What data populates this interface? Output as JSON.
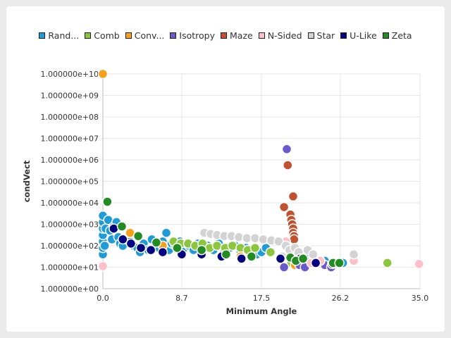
{
  "chart_data": {
    "type": "scatter",
    "xlabel": "Minimum Angle",
    "ylabel": "condVect",
    "xlim": [
      0,
      35
    ],
    "ylim": [
      0,
      10
    ],
    "y_scale": "log10 (axis value = exponent)",
    "x_ticks": [
      {
        "value": 0,
        "label": "0.0"
      },
      {
        "value": 8.7,
        "label": "8.7"
      },
      {
        "value": 17.5,
        "label": "17.5"
      },
      {
        "value": 26.2,
        "label": "26.2"
      },
      {
        "value": 35.0,
        "label": "35.0"
      }
    ],
    "y_ticks": [
      {
        "value": 0,
        "label": "1.000000e+00"
      },
      {
        "value": 1,
        "label": "1.000000e+01"
      },
      {
        "value": 2,
        "label": "1.000000e+02"
      },
      {
        "value": 3,
        "label": "1.000000e+03"
      },
      {
        "value": 4,
        "label": "1.000000e+04"
      },
      {
        "value": 5,
        "label": "1.000000e+05"
      },
      {
        "value": 6,
        "label": "1.000000e+06"
      },
      {
        "value": 7,
        "label": "1.000000e+07"
      },
      {
        "value": 8,
        "label": "1.000000e+08"
      },
      {
        "value": 9,
        "label": "1.000000e+09"
      },
      {
        "value": 10,
        "label": "1.000000e+10"
      }
    ],
    "series": [
      {
        "name": "Random",
        "legend_label": "Rand...",
        "color": "#1f9bd7",
        "points": [
          [
            0,
            1.6
          ],
          [
            0,
            1.9
          ],
          [
            0,
            2.2
          ],
          [
            0,
            2.5
          ],
          [
            0,
            2.8
          ],
          [
            0,
            3.1
          ],
          [
            0,
            3.4
          ],
          [
            0.2,
            2.0
          ],
          [
            0.3,
            2.8
          ],
          [
            0.6,
            3.2
          ],
          [
            0.8,
            2.7
          ],
          [
            1.0,
            2.3
          ],
          [
            1.2,
            2.9
          ],
          [
            1.5,
            3.1
          ],
          [
            1.7,
            2.4
          ],
          [
            1.9,
            2.1
          ],
          [
            2.2,
            2.0
          ],
          [
            2.6,
            2.3
          ],
          [
            3.0,
            2.2
          ],
          [
            3.4,
            2.0
          ],
          [
            3.8,
            1.9
          ],
          [
            4.1,
            1.7
          ],
          [
            4.5,
            2.1
          ],
          [
            5.0,
            1.8
          ],
          [
            5.4,
            2.3
          ],
          [
            5.8,
            2.0
          ],
          [
            6.2,
            1.9
          ],
          [
            6.6,
            2.2
          ],
          [
            7.0,
            2.6
          ],
          [
            7.3,
            1.8
          ],
          [
            7.6,
            2.1
          ],
          [
            8.0,
            2.0
          ],
          [
            8.5,
            2.2
          ],
          [
            9.0,
            1.9
          ],
          [
            9.5,
            2.0
          ],
          [
            10.0,
            1.8
          ],
          [
            10.5,
            2.1
          ],
          [
            11.0,
            1.9
          ],
          [
            11.6,
            2.0
          ],
          [
            12.2,
            1.8
          ],
          [
            12.8,
            2.1
          ],
          [
            13.4,
            1.7
          ],
          [
            14.0,
            1.9
          ],
          [
            14.6,
            2.0
          ],
          [
            15.2,
            1.7
          ],
          [
            15.8,
            1.9
          ],
          [
            16.4,
            1.8
          ],
          [
            17.0,
            1.6
          ],
          [
            17.5,
            1.7
          ],
          [
            18.0,
            1.9
          ],
          [
            20.5,
            1.5
          ],
          [
            21.0,
            1.4
          ],
          [
            21.5,
            1.6
          ],
          [
            22.5,
            1.4
          ],
          [
            23.5,
            1.3
          ],
          [
            24.5,
            1.3
          ],
          [
            26.5,
            1.2
          ]
        ]
      },
      {
        "name": "Comb",
        "legend_label": "Comb",
        "color": "#8cc63f",
        "points": [
          [
            7.8,
            2.2
          ],
          [
            8.6,
            2.1
          ],
          [
            9.4,
            2.1
          ],
          [
            10.2,
            2.0
          ],
          [
            11.0,
            2.1
          ],
          [
            11.8,
            1.9
          ],
          [
            12.6,
            2.0
          ],
          [
            13.5,
            1.9
          ],
          [
            14.3,
            2.0
          ],
          [
            15.2,
            1.9
          ],
          [
            16.0,
            1.8
          ],
          [
            16.8,
            1.9
          ],
          [
            18.5,
            1.7
          ],
          [
            20.8,
            1.2
          ],
          [
            21.6,
            1.4
          ],
          [
            22.4,
            1.3
          ],
          [
            31.4,
            1.2
          ]
        ]
      },
      {
        "name": "Convex",
        "legend_label": "Conv...",
        "color": "#f7a01c",
        "points": [
          [
            0,
            10.0
          ],
          [
            3.0,
            2.6
          ],
          [
            6.6,
            2.0
          ],
          [
            15.2,
            1.5
          ],
          [
            21.2,
            1.1
          ]
        ]
      },
      {
        "name": "Isotropy",
        "legend_label": "Isotropy",
        "color": "#6a5acd",
        "points": [
          [
            20.3,
            6.5
          ],
          [
            20.0,
            1.0
          ],
          [
            21.7,
            1.1
          ],
          [
            22.3,
            1.0
          ],
          [
            24.5,
            1.1
          ],
          [
            25.2,
            1.0
          ]
        ]
      },
      {
        "name": "Maze",
        "legend_label": "Maze",
        "color": "#c0522f",
        "points": [
          [
            20.4,
            5.75
          ],
          [
            21.0,
            4.3
          ],
          [
            20.0,
            3.8
          ],
          [
            20.7,
            3.45
          ],
          [
            20.8,
            3.2
          ],
          [
            20.9,
            3.0
          ],
          [
            21.0,
            2.8
          ],
          [
            21.0,
            2.6
          ],
          [
            21.1,
            2.45
          ],
          [
            21.1,
            2.3
          ]
        ]
      },
      {
        "name": "N-Sided",
        "legend_label": "N-Sided",
        "color": "#ffc0cb",
        "points": [
          [
            0,
            1.05
          ],
          [
            20.2,
            2.2
          ],
          [
            22.0,
            1.5
          ],
          [
            23.0,
            1.2
          ],
          [
            24.0,
            1.3
          ],
          [
            27.7,
            1.3
          ],
          [
            34.9,
            1.15
          ]
        ]
      },
      {
        "name": "Star",
        "legend_label": "Star",
        "color": "#d3d3d3",
        "points": [
          [
            11.2,
            2.6
          ],
          [
            11.9,
            2.55
          ],
          [
            12.6,
            2.5
          ],
          [
            13.4,
            2.45
          ],
          [
            14.2,
            2.45
          ],
          [
            15.0,
            2.4
          ],
          [
            15.9,
            2.35
          ],
          [
            16.8,
            2.35
          ],
          [
            17.7,
            2.3
          ],
          [
            18.6,
            2.25
          ],
          [
            19.4,
            2.2
          ],
          [
            20.2,
            2.0
          ],
          [
            20.6,
            1.8
          ],
          [
            21.2,
            1.9
          ],
          [
            21.6,
            1.7
          ],
          [
            22.6,
            1.8
          ],
          [
            23.2,
            1.6
          ],
          [
            19.8,
            1.5
          ],
          [
            27.7,
            1.6
          ]
        ]
      },
      {
        "name": "U-Like",
        "legend_label": "U-Like",
        "color": "#000080",
        "points": [
          [
            1.2,
            2.8
          ],
          [
            2.2,
            2.3
          ],
          [
            3.1,
            2.1
          ],
          [
            4.2,
            1.9
          ],
          [
            5.3,
            1.8
          ],
          [
            6.6,
            1.7
          ],
          [
            8.7,
            1.6
          ],
          [
            10.9,
            1.6
          ],
          [
            13.1,
            1.5
          ],
          [
            15.3,
            1.4
          ],
          [
            19.6,
            1.4
          ],
          [
            21.8,
            1.4
          ],
          [
            23.5,
            1.2
          ],
          [
            25.3,
            1.15
          ]
        ]
      },
      {
        "name": "Zeta",
        "legend_label": "Zeta",
        "color": "#228b22",
        "points": [
          [
            0.5,
            4.05
          ],
          [
            2.1,
            2.9
          ],
          [
            3.9,
            2.45
          ],
          [
            5.9,
            2.15
          ],
          [
            8.2,
            1.9
          ],
          [
            10.9,
            1.8
          ],
          [
            13.6,
            1.6
          ],
          [
            16.4,
            1.5
          ],
          [
            20.7,
            1.45
          ],
          [
            21.3,
            1.3
          ],
          [
            22.1,
            1.4
          ],
          [
            25.4,
            1.2
          ],
          [
            26.1,
            1.2
          ]
        ]
      }
    ]
  }
}
